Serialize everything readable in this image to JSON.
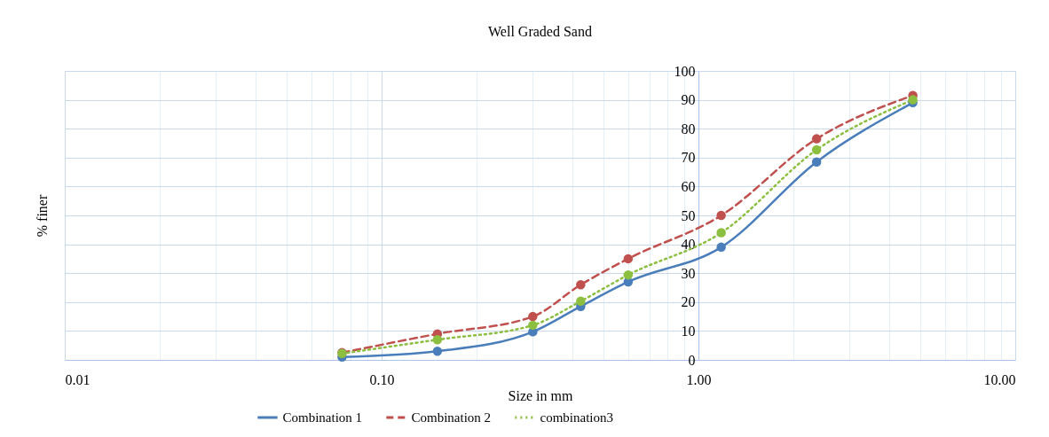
{
  "chart_data": {
    "type": "line",
    "title": "Well Graded Sand",
    "xlabel": "Size in mm",
    "ylabel": "% finer",
    "log": "x",
    "x": [
      0.075,
      0.15,
      0.3,
      0.425,
      0.6,
      1.18,
      2.36,
      4.75
    ],
    "series": [
      {
        "name": "Combination 1",
        "color": "#4a7ebb",
        "line_style": "solid",
        "values": [
          1,
          3,
          9.7,
          18.5,
          27,
          39,
          68.5,
          89
        ]
      },
      {
        "name": "Combination 2",
        "color": "#c0504d",
        "line_style": "dashed",
        "values": [
          2.5,
          9,
          15,
          26,
          35,
          50,
          76.5,
          91.5
        ]
      },
      {
        "name": "combination3",
        "color": "#8cbf3f",
        "line_style": "dotted",
        "values": [
          2.2,
          7,
          12,
          20.3,
          29.4,
          44,
          72.7,
          90
        ]
      }
    ],
    "xlim": [
      0.01,
      10
    ],
    "xticks": [
      {
        "value": 0.01,
        "label": "0.01"
      },
      {
        "value": 0.1,
        "label": "0.10"
      },
      {
        "value": 1,
        "label": "1.00"
      },
      {
        "value": 10,
        "label": "10.00"
      }
    ],
    "ylim": [
      0,
      100
    ],
    "yticks": [
      0,
      10,
      20,
      30,
      40,
      50,
      60,
      70,
      80,
      90,
      100
    ],
    "grid": true,
    "legend": "bottom",
    "marker": "circle"
  }
}
